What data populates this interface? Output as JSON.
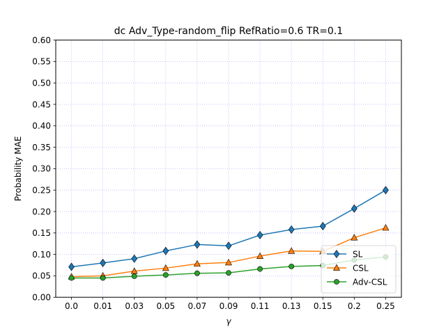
{
  "chart_data": {
    "type": "line",
    "title": "dc Adv_Type-random_flip RefRatio=0.6 TR=0.1",
    "xlabel": "γ",
    "ylabel": "Probability MAE",
    "categories": [
      "0.0",
      "0.01",
      "0.03",
      "0.05",
      "0.07",
      "0.09",
      "0.11",
      "0.13",
      "0.15",
      "0.2",
      "0.25"
    ],
    "yticks": [
      "0.00",
      "0.05",
      "0.10",
      "0.15",
      "0.20",
      "0.25",
      "0.30",
      "0.35",
      "0.40",
      "0.45",
      "0.50",
      "0.55",
      "0.60"
    ],
    "ylim": [
      0,
      0.6
    ],
    "grid": true,
    "legend": "lower-right",
    "series": [
      {
        "name": "SL",
        "color": "#1f77b4",
        "marker": "diamond",
        "values": [
          0.071,
          0.08,
          0.09,
          0.108,
          0.123,
          0.12,
          0.145,
          0.158,
          0.166,
          0.207,
          0.25
        ]
      },
      {
        "name": "CSL",
        "color": "#ff7f0e",
        "marker": "triangle",
        "values": [
          0.048,
          0.05,
          0.061,
          0.068,
          0.078,
          0.081,
          0.096,
          0.108,
          0.107,
          0.139,
          0.162
        ]
      },
      {
        "name": "Adv-CSL",
        "color": "#2ca02c",
        "marker": "circle",
        "values": [
          0.045,
          0.045,
          0.049,
          0.052,
          0.056,
          0.057,
          0.066,
          0.072,
          0.074,
          0.087,
          0.094
        ]
      }
    ]
  }
}
